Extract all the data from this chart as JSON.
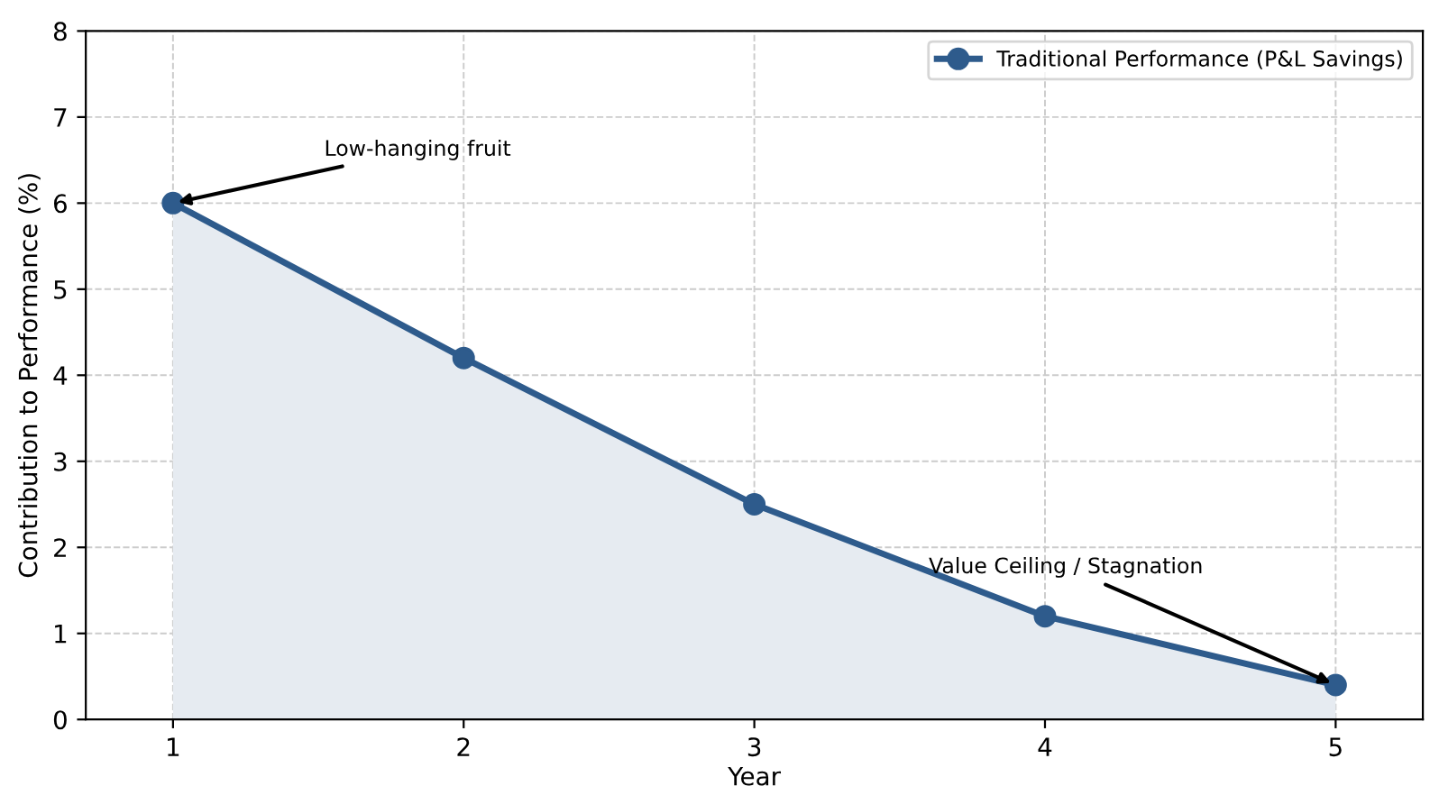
{
  "chart_data": {
    "type": "area",
    "xlabel": "Year",
    "ylabel": "Contribution to Performance (%)",
    "x": [
      1,
      2,
      3,
      4,
      5
    ],
    "series": [
      {
        "name": "Traditional Performance (P&L Savings)",
        "color": "#2e5b8c",
        "values": [
          6,
          4.2,
          2.5,
          1.2,
          0.4
        ]
      }
    ],
    "xlim": [
      0.7,
      5.3
    ],
    "ylim": [
      0,
      8
    ],
    "xticks": [
      1,
      2,
      3,
      4,
      5
    ],
    "yticks": [
      0,
      1,
      2,
      3,
      4,
      5,
      6,
      7,
      8
    ],
    "annotations": [
      {
        "text": "Low-hanging fruit",
        "x": 1,
        "y": 6
      },
      {
        "text": "Value Ceiling / Stagnation",
        "x": 5,
        "y": 0.4
      }
    ],
    "grid": true,
    "legend": "top right",
    "marker": "circle",
    "line_style": "solid"
  }
}
